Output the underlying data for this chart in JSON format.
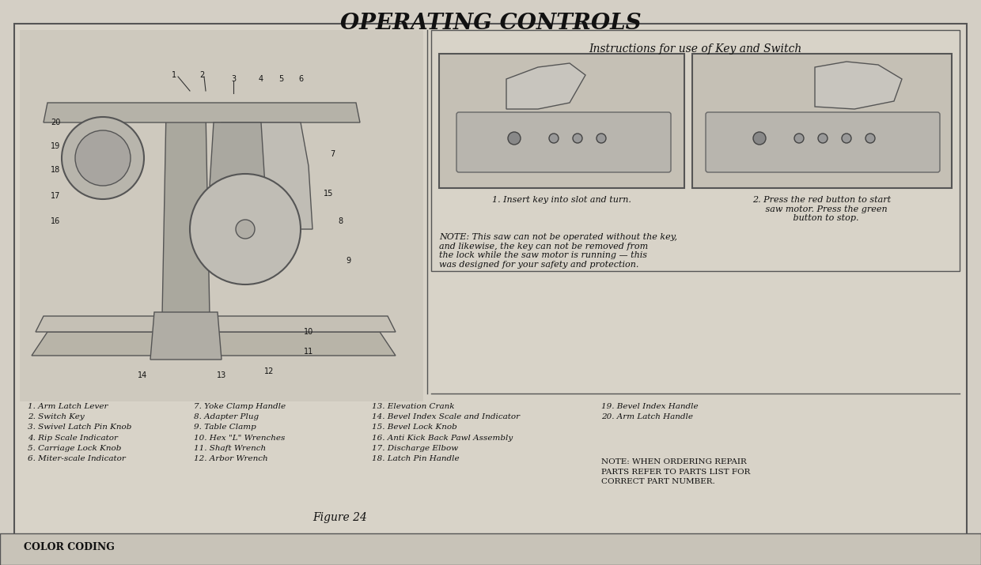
{
  "title": "OPERATING CONTROLS",
  "bg_color": "#c8c0b0",
  "border_color": "#333333",
  "figure_label": "Figure 24",
  "instructions_title": "Instructions for use of Key and Switch",
  "instruction1": "1. Insert key into slot and turn.",
  "instruction2": "2. Press the red button to start\n   saw motor. Press the green\n   button to stop.",
  "note_text": "NOTE: This saw can not be operated without the key,\nand likewise, the key can not be removed from\nthe lock while the saw motor is running — this\nwas designed for your safety and protection.",
  "parts_col1": [
    "1. Arm Latch Lever",
    "2. Switch Key",
    "3. Swivel Latch Pin Knob",
    "4. Rip Scale Indicator",
    "5. Carriage Lock Knob",
    "6. Miter-scale Indicator"
  ],
  "parts_col2": [
    "7. Yoke Clamp Handle",
    "8. Adapter Plug",
    "9. Table Clamp",
    "10. Hex \"L\" Wrenches",
    "11. Shaft Wrench",
    "12. Arbor Wrench"
  ],
  "parts_col3": [
    "13. Elevation Crank",
    "14. Bevel Index Scale and Indicator",
    "15. Bevel Lock Knob",
    "16. Anti Kick Back Pawl Assembly",
    "17. Discharge Elbow",
    "18. Latch Pin Handle"
  ],
  "parts_col4": [
    "19. Bevel Index Handle",
    "20. Arm Latch Handle"
  ],
  "note2": "NOTE: WHEN ORDERING REPAIR\nPARTS REFER TO PARTS LIST FOR\nCORRECT PART NUMBER.",
  "bottom_text": "COLOR CODING",
  "page_bg": "#d4cfc5"
}
